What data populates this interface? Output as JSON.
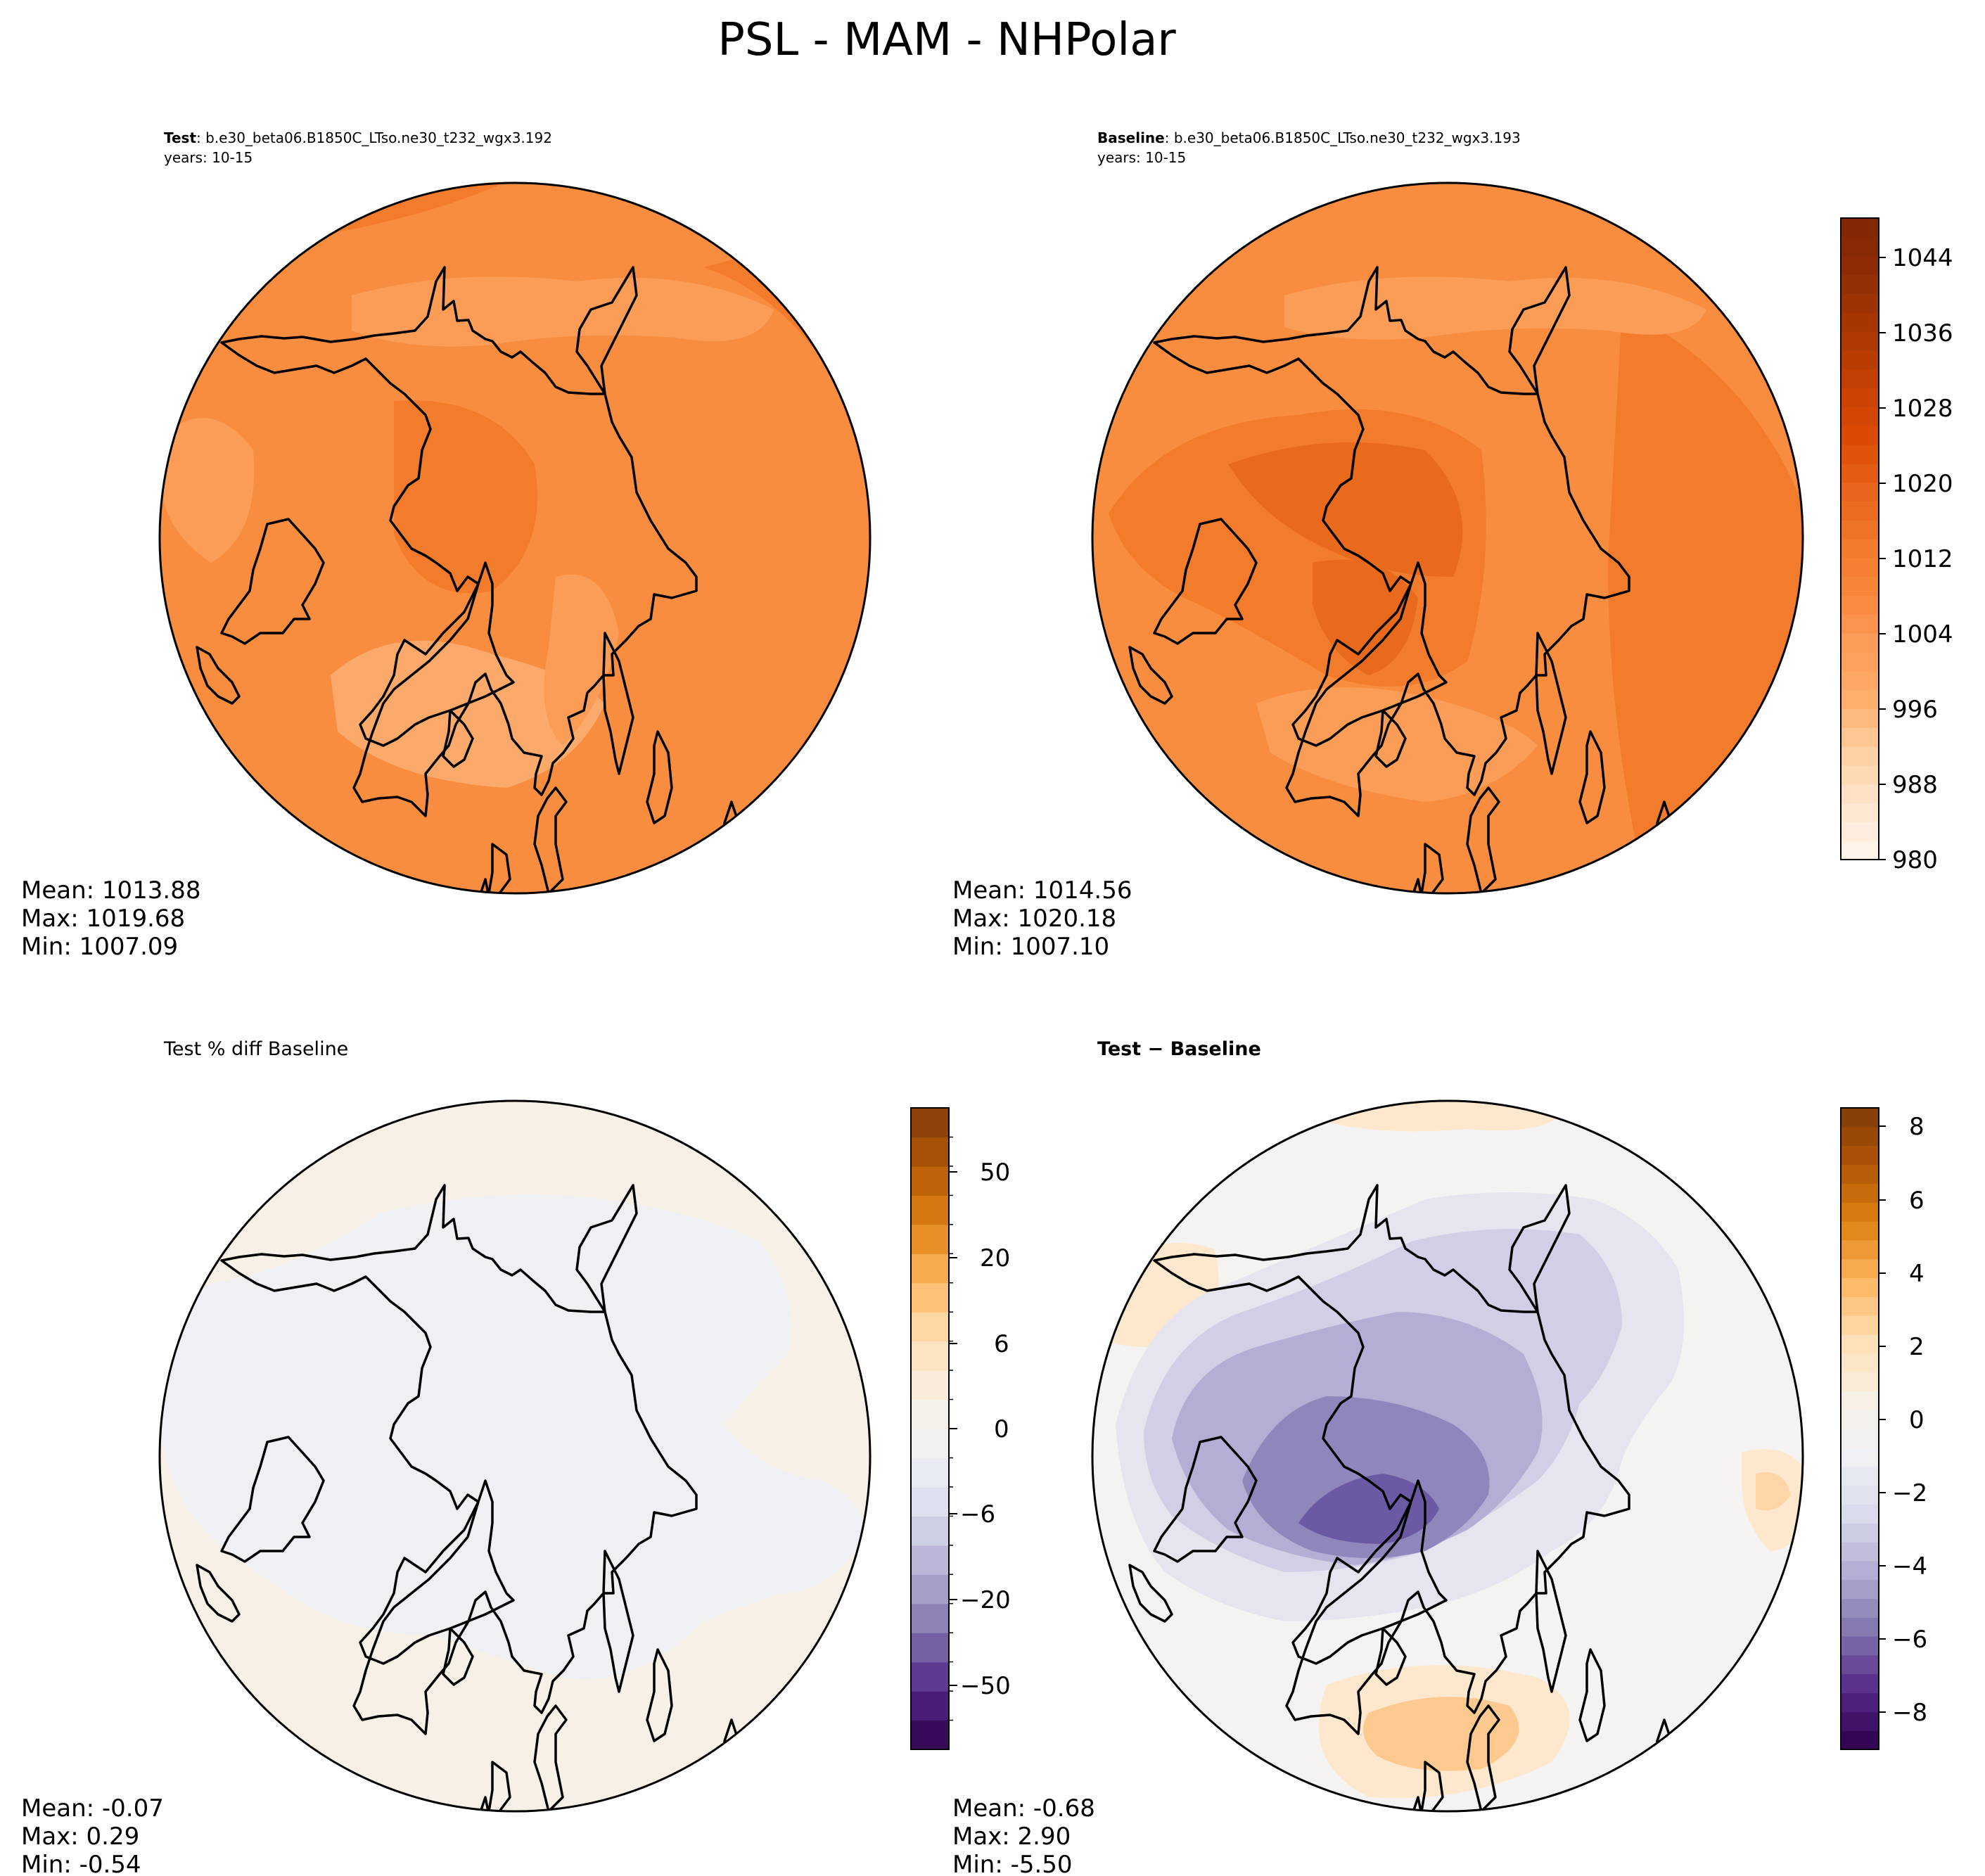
{
  "figure_title": "PSL - MAM - NHPolar",
  "colors": {
    "outline": "#000000",
    "orange_ramp": [
      "#fff5eb",
      "#fee6ce",
      "#fdd0a2",
      "#fdae6b",
      "#fd9c5a",
      "#f8873a",
      "#f1772a",
      "#e8621a",
      "#d94801",
      "#c43f03",
      "#a63603",
      "#8f2d04",
      "#7f2704"
    ],
    "diverging_ramp": [
      "#2d004b",
      "#542788",
      "#8073ac",
      "#b2abd2",
      "#d8daeb",
      "#eef0f4",
      "#f7f0e6",
      "#fee0b6",
      "#fdb863",
      "#e08214",
      "#b35806",
      "#7f3b08"
    ]
  },
  "panels": {
    "test": {
      "label_bold": "Test",
      "case": ": b.e30_beta06.B1850C_LTso.ne30_t232_wgx3.192",
      "years": "years: 10-15",
      "stats": {
        "mean": "Mean: 1013.88",
        "max": "Max: 1019.68",
        "min": "Min: 1007.09"
      }
    },
    "baseline": {
      "label_bold": "Baseline",
      "case": ": b.e30_beta06.B1850C_LTso.ne30_t232_wgx3.193",
      "years": "years: 10-15",
      "stats": {
        "mean": "Mean: 1014.56",
        "max": "Max: 1020.18",
        "min": "Min: 1007.10"
      }
    },
    "pct_diff": {
      "title": "Test % diff Baseline",
      "stats": {
        "mean": "Mean: -0.07",
        "max": "Max:  0.29",
        "min": "Min: -0.54"
      }
    },
    "diff": {
      "title_bold_a": "Test",
      "title_sep": " − ",
      "title_bold_b": "Baseline",
      "stats": {
        "mean": "Mean: -0.68",
        "max": "Max:  2.90",
        "min": "Min: -5.50"
      }
    }
  },
  "colorbars": {
    "absolute": {
      "ticks": [
        "1044",
        "1036",
        "1028",
        "1020",
        "1012",
        "1004",
        "996",
        "988",
        "980"
      ],
      "range": [
        980,
        1048
      ]
    },
    "pct_diff": {
      "ticks": [
        "50",
        "20",
        "6",
        "0",
        "−6",
        "−20",
        "−50"
      ]
    },
    "diff": {
      "ticks": [
        "8",
        "6",
        "4",
        "2",
        "0",
        "−2",
        "−4",
        "−6",
        "−8"
      ],
      "range": [
        -9,
        8.5
      ]
    }
  }
}
